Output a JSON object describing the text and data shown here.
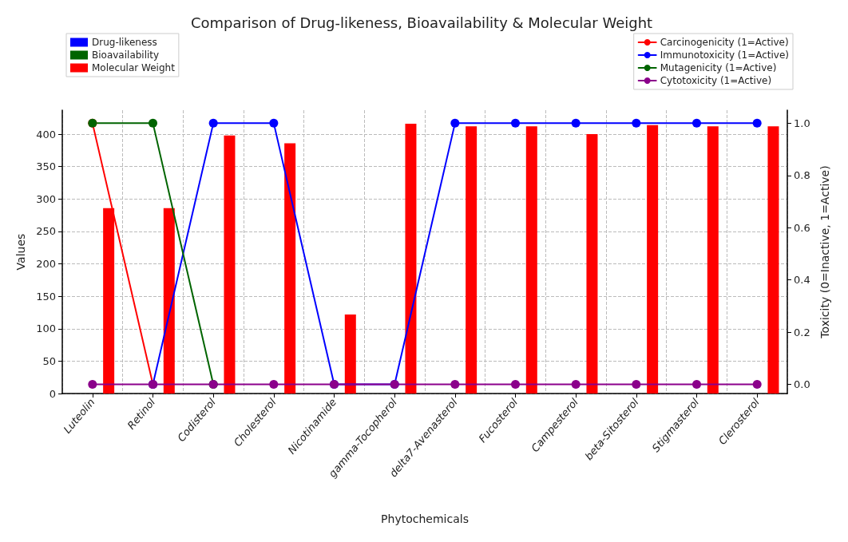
{
  "chart_data": {
    "type": "bar",
    "title": "Comparison of Drug-likeness, Bioavailability & Molecular Weight",
    "xlabel": "Phytochemicals",
    "ylabel": "Values",
    "y2label": "Toxicity (0=Inactive, 1=Active)",
    "categories": [
      "Luteolin",
      "Retinol",
      "Codisterol",
      "Cholesterol",
      "Nicotinamide",
      "gamma-Tocopherol",
      "delta7-Avenasterol",
      "Fucosterol",
      "Campesterol",
      "beta-Sitosterol",
      "Stigmasterol",
      "Clerosterol"
    ],
    "series": [
      {
        "name": "Drug-likeness",
        "color": "#0000ff",
        "values": [
          null,
          null,
          null,
          null,
          null,
          null,
          null,
          null,
          null,
          null,
          null,
          null
        ]
      },
      {
        "name": "Bioavailability",
        "color": "#006400",
        "values": [
          null,
          null,
          null,
          null,
          null,
          null,
          null,
          null,
          null,
          null,
          null,
          null
        ]
      },
      {
        "name": "Molecular Weight",
        "color": "#ff0000",
        "values": [
          286,
          286,
          398,
          386,
          122,
          416,
          412,
          412,
          400,
          414,
          412,
          412
        ]
      },
      {
        "name": "Carcinogenicity (1=Active)",
        "type": "line",
        "axis": "y2",
        "color": "#ff0000",
        "values": [
          1,
          0,
          null,
          null,
          null,
          null,
          null,
          null,
          null,
          null,
          null,
          null
        ]
      },
      {
        "name": "Immunotoxicity (1=Active)",
        "type": "line",
        "axis": "y2",
        "color": "#0000ff",
        "values": [
          null,
          0,
          1,
          1,
          0,
          0,
          1,
          1,
          1,
          1,
          1,
          1
        ]
      },
      {
        "name": "Mutagenicity (1=Active)",
        "type": "line",
        "axis": "y2",
        "color": "#006400",
        "values": [
          1,
          1,
          0,
          null,
          null,
          null,
          null,
          null,
          null,
          null,
          null,
          null
        ]
      },
      {
        "name": "Cytotoxicity (1=Active)",
        "type": "line",
        "axis": "y2",
        "color": "#8b008b",
        "values": [
          0,
          0,
          0,
          0,
          0,
          0,
          0,
          0,
          0,
          0,
          0,
          0
        ]
      }
    ],
    "ylim": [
      0,
      437
    ],
    "yticks": [
      0,
      50,
      100,
      150,
      200,
      250,
      300,
      350,
      400
    ],
    "y2lim": [
      -0.035,
      1.05
    ],
    "y2ticks": [
      {
        "value": 0,
        "label": "0.0"
      },
      0.2,
      0.4,
      0.6,
      0.8,
      {
        "value": 1,
        "label": "1.0"
      }
    ],
    "grid": true,
    "legend": "top",
    "marker": "circle",
    "line_style": "solid"
  }
}
